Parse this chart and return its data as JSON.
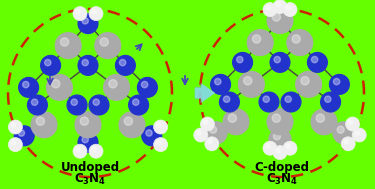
{
  "bg_color": "#66ff00",
  "circle_edge_color": "#cc2200",
  "arrow_color": "#88ddee",
  "text_color": "#000000",
  "font_size_label": 8.5,
  "C_color": "#aaaaaa",
  "N_color": "#2233cc",
  "H_color": "#f0f0f0",
  "blue_arrow_color": "#4444bb",
  "label_left_line1": "Undoped",
  "label_left_line2": "$\\mathbf{C_3N_4}$",
  "label_right_line1": "C-doped",
  "label_right_line2": "$\\mathbf{C_3N_4}$"
}
